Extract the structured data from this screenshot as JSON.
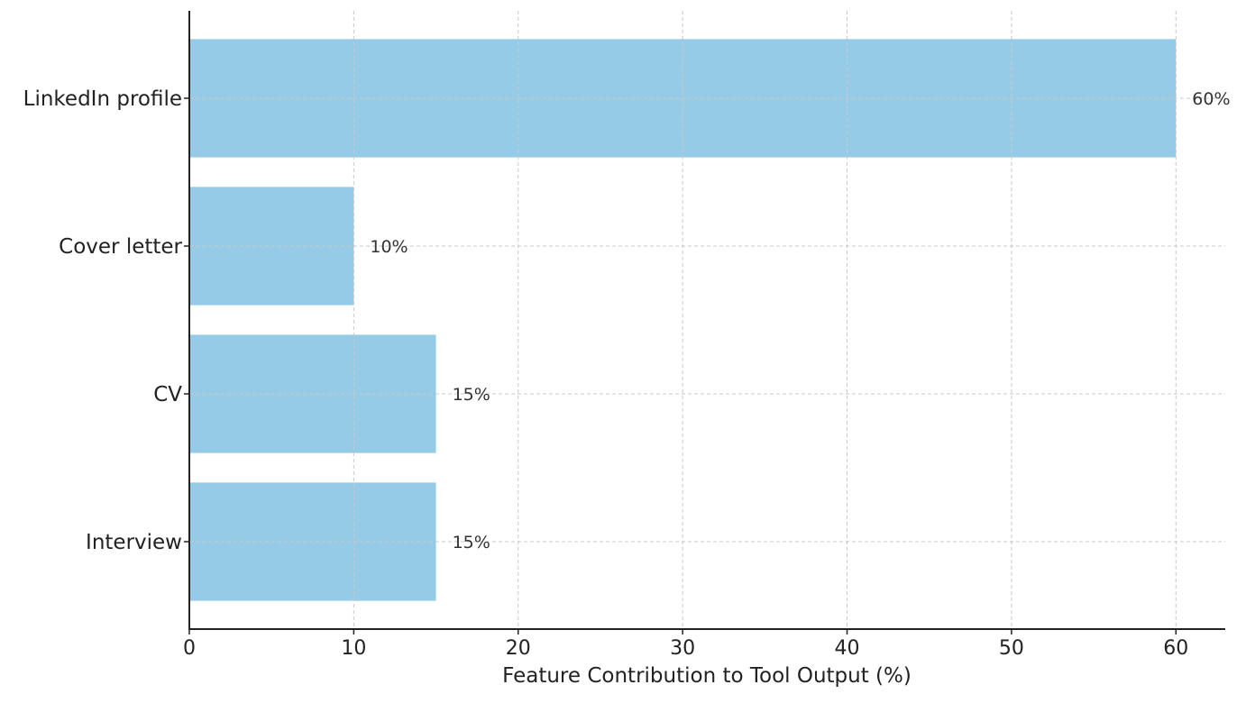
{
  "chart_data": {
    "type": "bar",
    "orientation": "horizontal",
    "categories": [
      "LinkedIn profile",
      "Cover letter",
      "CV",
      "Interview"
    ],
    "values": [
      60,
      10,
      15,
      15
    ],
    "value_labels": [
      "60%",
      "10%",
      "15%",
      "15%"
    ],
    "title": "",
    "xlabel": "Feature Contribution to Tool Output (%)",
    "ylabel": "",
    "xlim": [
      0,
      63
    ],
    "xticks": [
      0,
      10,
      20,
      30,
      40,
      50,
      60
    ],
    "grid": true,
    "bar_color": "#96cbe8"
  }
}
